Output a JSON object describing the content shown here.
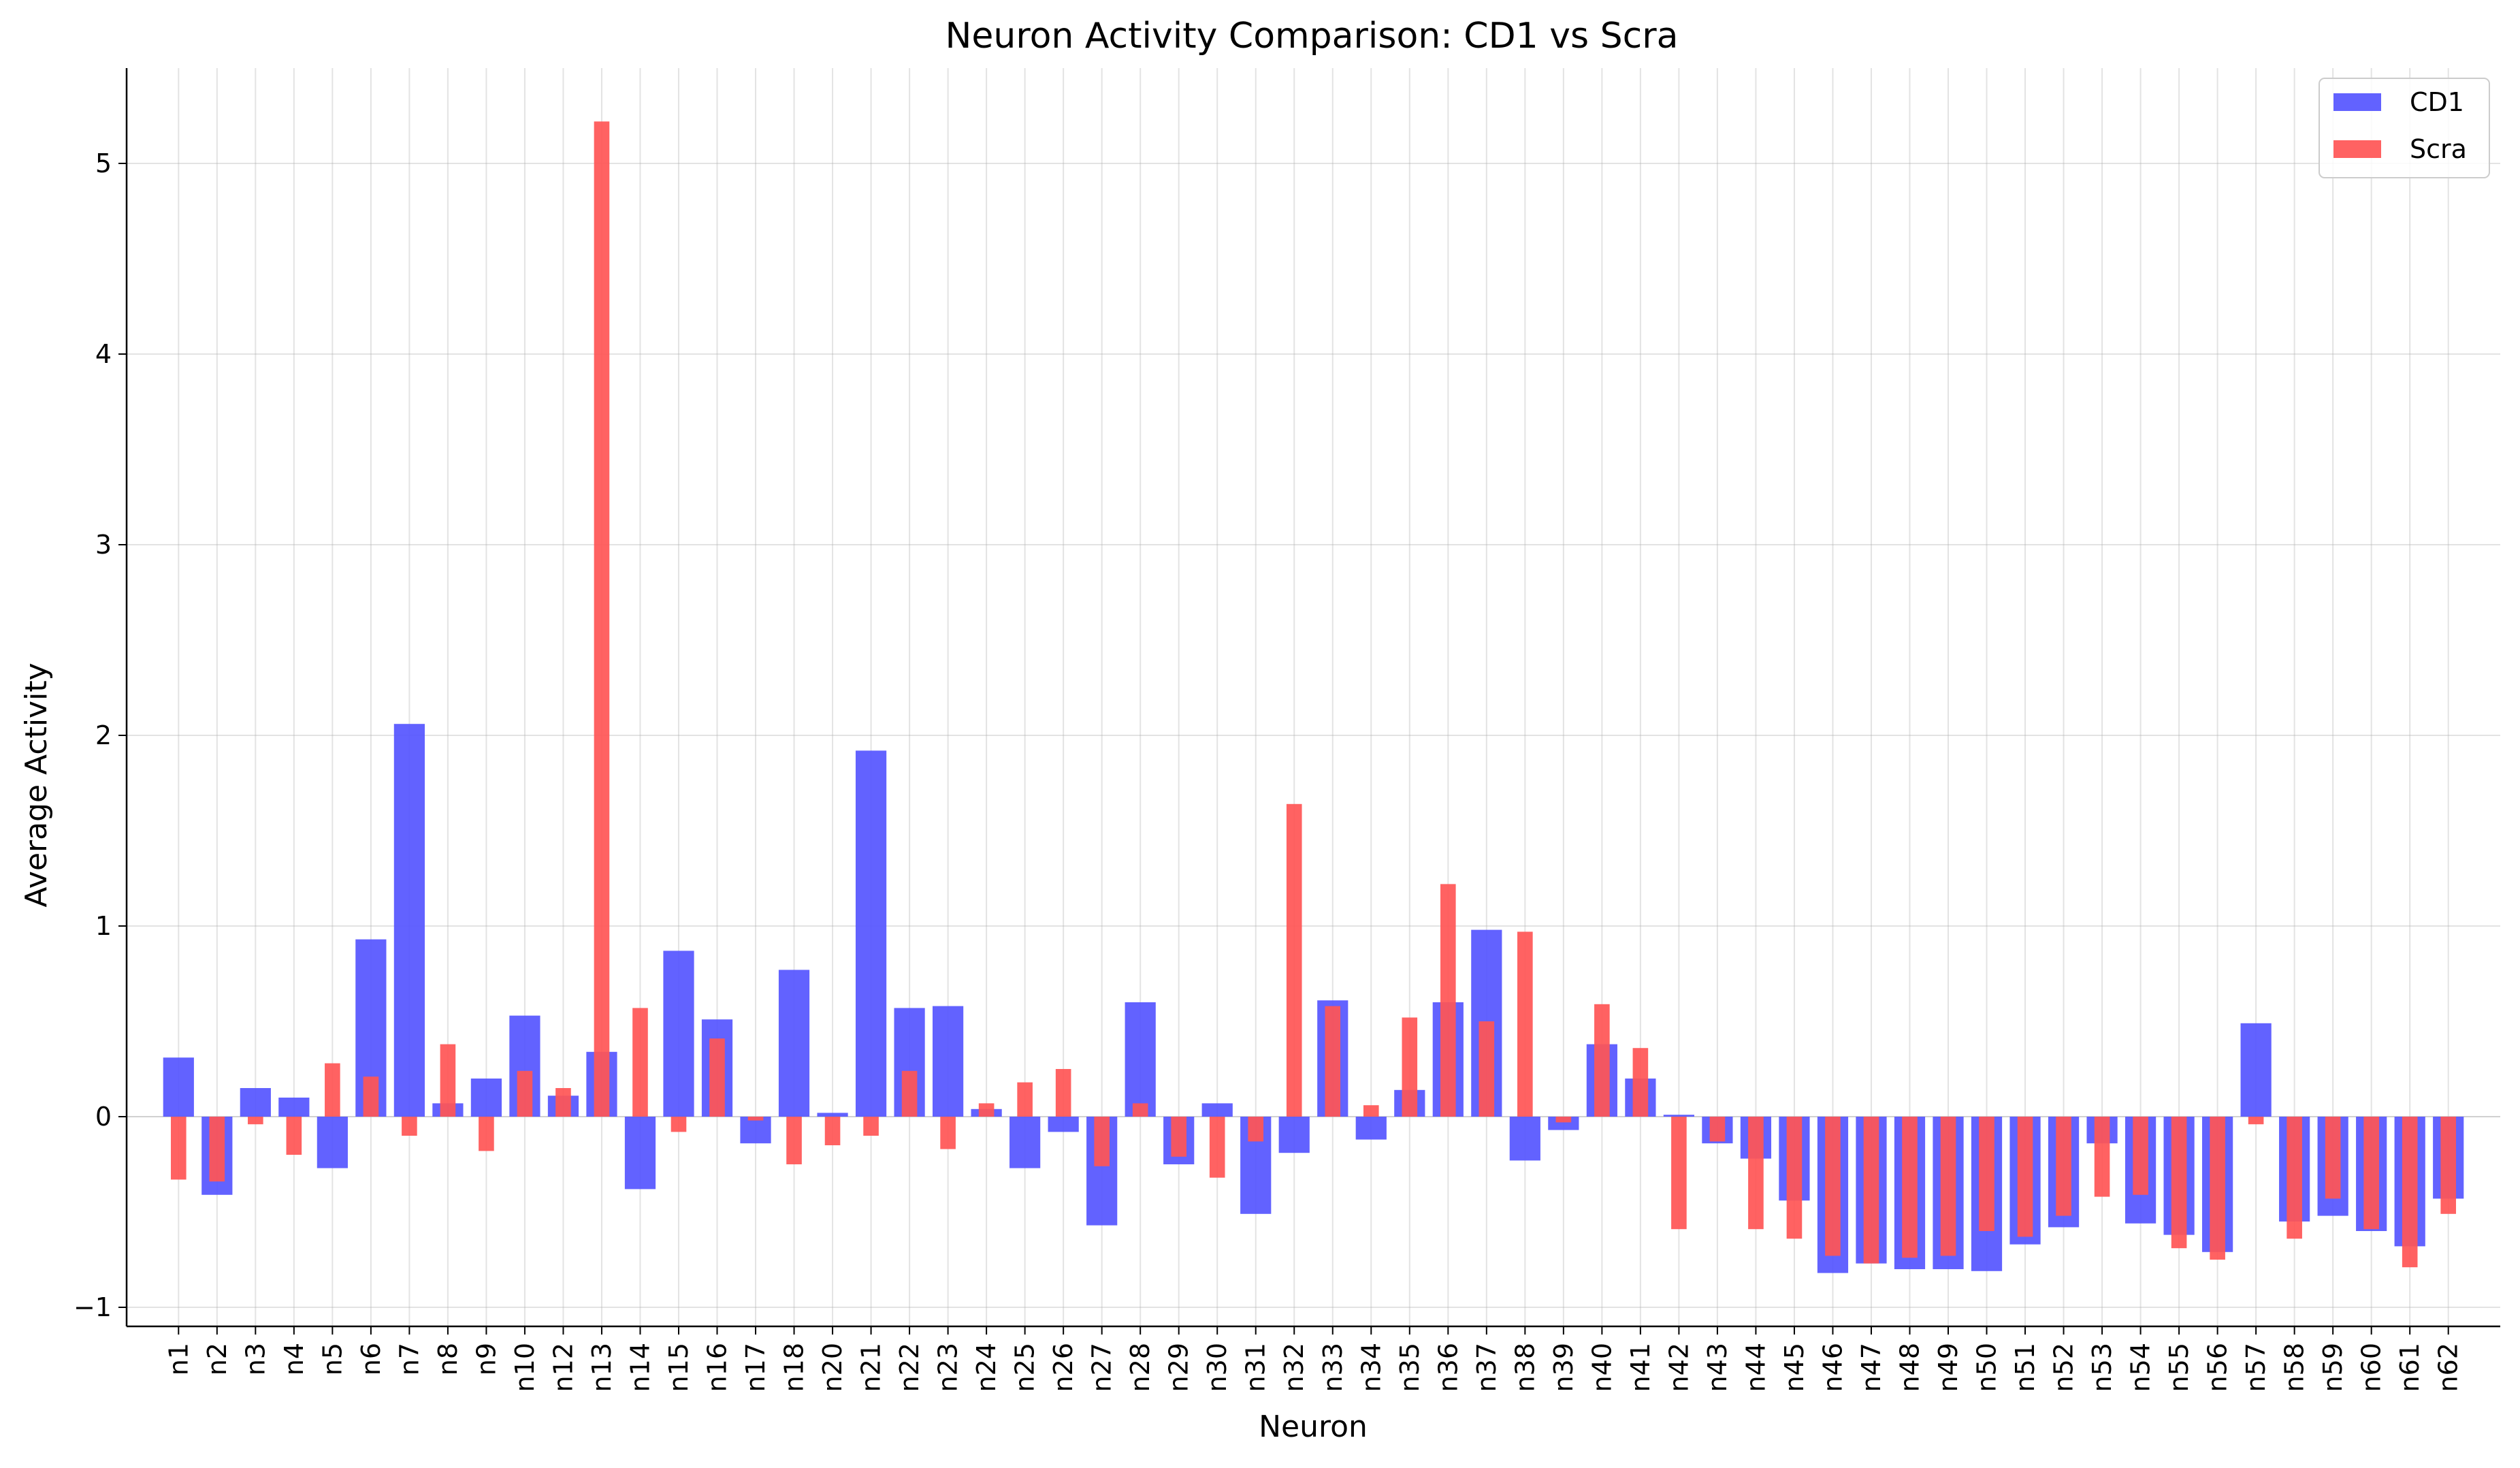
{
  "chart_data": {
    "type": "bar",
    "title": "Neuron Activity Comparison: CD1 vs Scra",
    "xlabel": "Neuron",
    "ylabel": "Average Activity",
    "ylim": [
      -1.1,
      5.5
    ],
    "yticks": [
      -1,
      0,
      1,
      2,
      3,
      4,
      5
    ],
    "grid": true,
    "legend_position": "top-right",
    "categories": [
      "n1",
      "n2",
      "n3",
      "n4",
      "n5",
      "n6",
      "n7",
      "n8",
      "n9",
      "n10",
      "n12",
      "n13",
      "n14",
      "n15",
      "n16",
      "n17",
      "n18",
      "n20",
      "n21",
      "n22",
      "n23",
      "n24",
      "n25",
      "n26",
      "n27",
      "n28",
      "n29",
      "n30",
      "n31",
      "n32",
      "n33",
      "n34",
      "n35",
      "n36",
      "n37",
      "n38",
      "n39",
      "n40",
      "n41",
      "n42",
      "n43",
      "n44",
      "n45",
      "n46",
      "n47",
      "n48",
      "n49",
      "n50",
      "n51",
      "n52",
      "n53",
      "n54",
      "n55",
      "n56",
      "n57",
      "n58",
      "n59",
      "n60",
      "n61",
      "n62"
    ],
    "series": [
      {
        "name": "CD1",
        "color": "#5555ff",
        "values": [
          0.31,
          -0.41,
          0.15,
          0.1,
          -0.27,
          0.93,
          2.06,
          0.07,
          0.2,
          0.53,
          0.11,
          0.34,
          -0.38,
          0.87,
          0.51,
          -0.14,
          0.77,
          0.02,
          1.92,
          0.57,
          0.58,
          0.04,
          -0.27,
          -0.08,
          -0.57,
          0.6,
          -0.25,
          0.07,
          -0.51,
          -0.19,
          0.61,
          -0.12,
          0.14,
          0.6,
          0.98,
          -0.23,
          -0.07,
          0.38,
          0.2,
          0.01,
          -0.14,
          -0.22,
          -0.44,
          -0.82,
          -0.77,
          -0.8,
          -0.8,
          -0.81,
          -0.67,
          -0.58,
          -0.14,
          -0.56,
          -0.62,
          -0.71,
          0.49,
          -0.55,
          -0.52,
          -0.6,
          -0.68,
          -0.43
        ]
      },
      {
        "name": "Scra",
        "color": "#ff5555",
        "values": [
          -0.33,
          -0.34,
          -0.04,
          -0.2,
          0.28,
          0.21,
          -0.1,
          0.38,
          -0.18,
          0.24,
          0.15,
          5.22,
          0.57,
          -0.08,
          0.41,
          -0.02,
          -0.25,
          -0.15,
          -0.1,
          0.24,
          -0.17,
          0.07,
          0.18,
          0.25,
          -0.26,
          0.07,
          -0.21,
          -0.32,
          -0.13,
          1.64,
          0.58,
          0.06,
          0.52,
          1.22,
          0.5,
          0.97,
          -0.03,
          0.59,
          0.36,
          -0.59,
          -0.13,
          -0.59,
          -0.64,
          -0.73,
          -0.77,
          -0.74,
          -0.73,
          -0.6,
          -0.63,
          -0.52,
          -0.42,
          -0.41,
          -0.69,
          -0.75,
          -0.04,
          -0.64,
          -0.43,
          -0.59,
          -0.79,
          -0.51
        ]
      }
    ]
  }
}
